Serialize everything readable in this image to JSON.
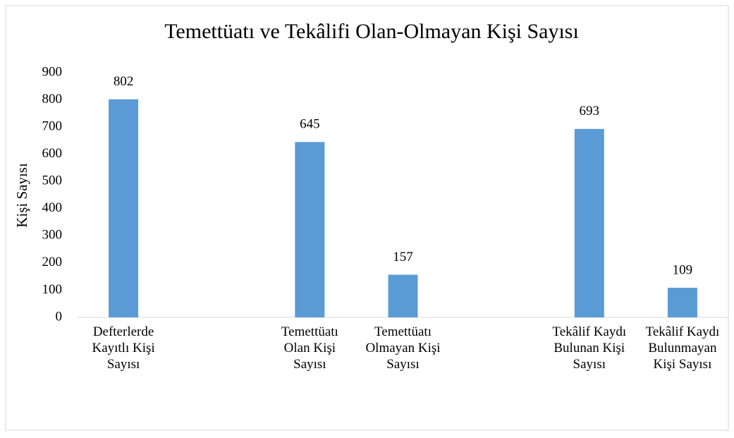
{
  "chart_data": {
    "type": "bar",
    "title": "Temettüatı ve Tekâlifi Olan-Olmayan Kişi Sayısı",
    "y_label": "Kişi Sayısı",
    "categories": [
      "Defterlerde Kayıtlı Kişi Sayısı",
      null,
      "Temettüatı Olan Kişi Sayısı",
      "Temettüatı Olmayan Kişi Sayısı",
      null,
      "Tekâlif Kaydı Bulunan Kişi Sayısı",
      "Tekâlif Kaydı Bulunmayan Kişi Sayısı"
    ],
    "values": [
      802,
      null,
      645,
      157,
      null,
      693,
      109
    ],
    "color": "#5b9bd5",
    "ylim": [
      0,
      900
    ],
    "yticks": [
      0,
      100,
      200,
      300,
      400,
      500,
      600,
      700,
      800,
      900
    ],
    "grid": false
  }
}
